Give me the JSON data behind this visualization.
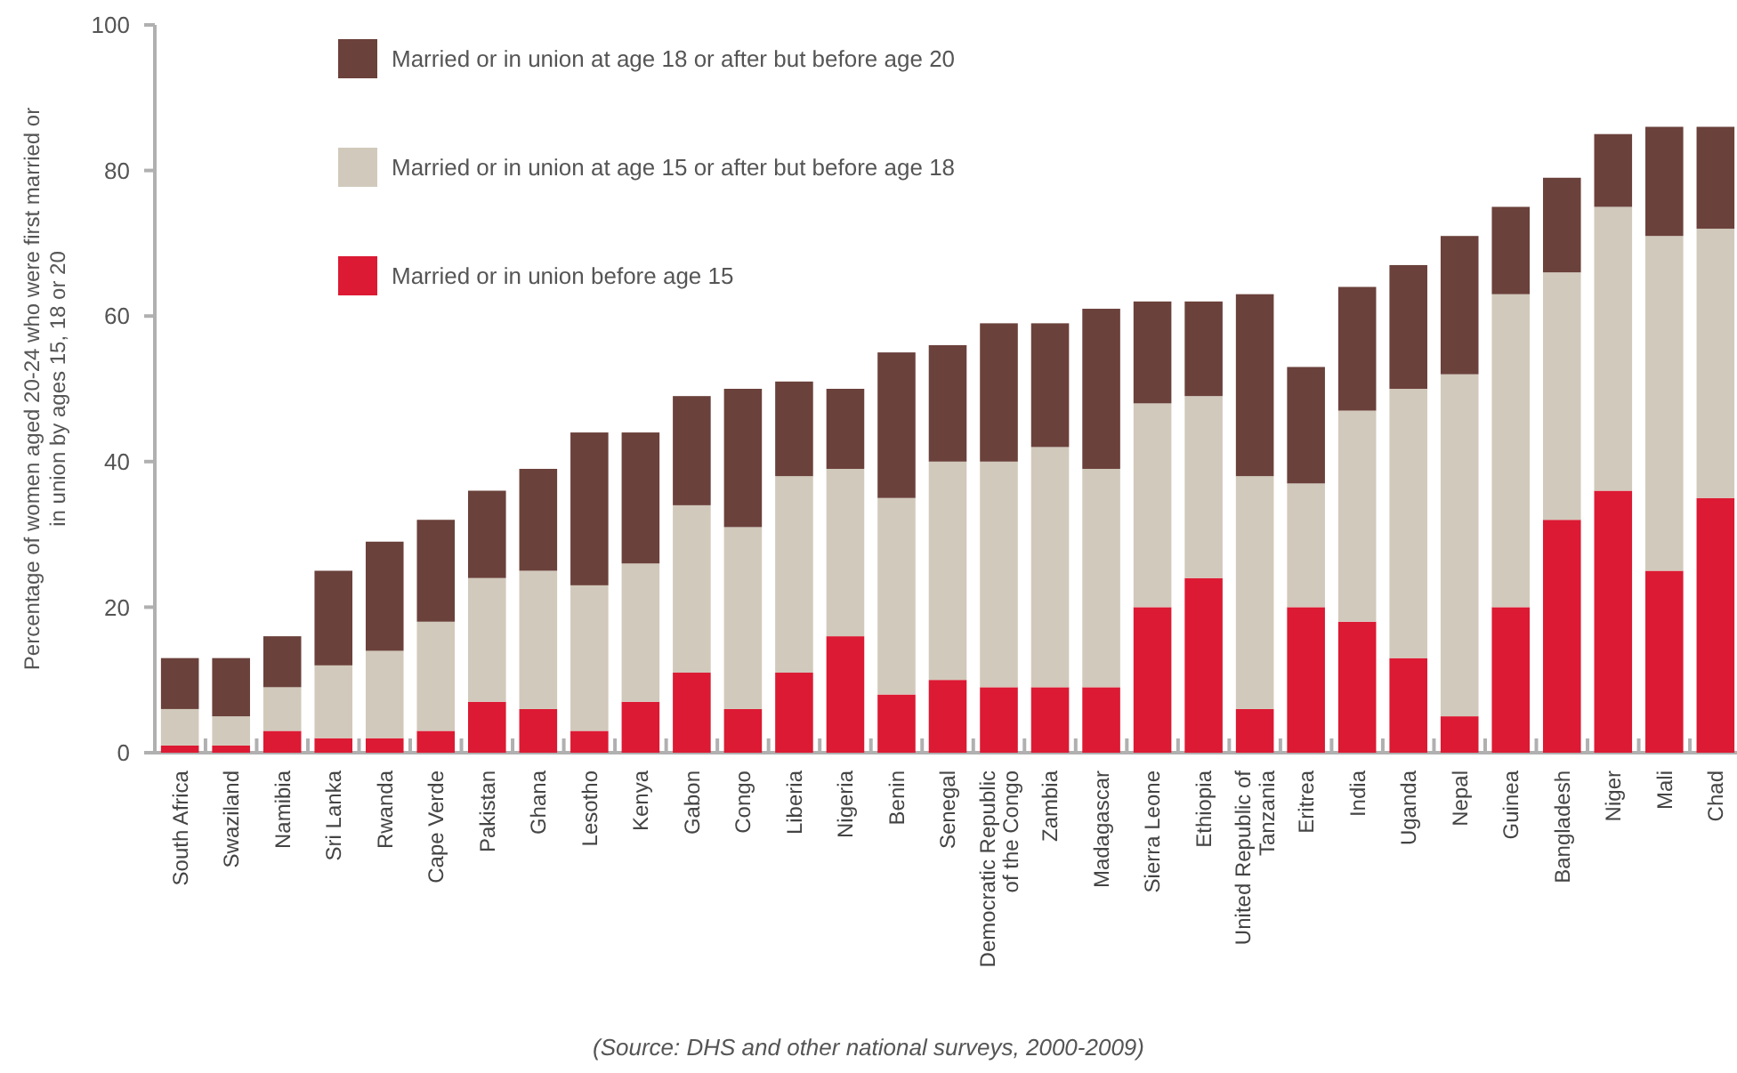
{
  "chart_data": {
    "type": "bar",
    "stacked": true,
    "ylabel": "Percentage of women aged 20-24 who were first married or in union by ages 15, 18 or 20",
    "categories": [
      "South Africa",
      "Swaziland",
      "Namibia",
      "Sri Lanka",
      "Rwanda",
      "Cape Verde",
      "Pakistan",
      "Ghana",
      "Lesotho",
      "Kenya",
      "Gabon",
      "Congo",
      "Liberia",
      "Nigeria",
      "Benin",
      "Senegal",
      "Democratic Republic of the Congo",
      "Zambia",
      "Madagascar",
      "Sierra Leone",
      "Ethiopia",
      "United Republic of Tanzania",
      "Eritrea",
      "India",
      "Uganda",
      "Nepal",
      "Guinea",
      "Bangladesh",
      "Niger",
      "Mali",
      "Chad"
    ],
    "series": [
      {
        "name": "Married or in union before age 15",
        "color": "#dc1a33",
        "values": [
          1,
          1,
          3,
          2,
          2,
          3,
          7,
          6,
          3,
          7,
          11,
          6,
          11,
          16,
          8,
          10,
          9,
          9,
          9,
          20,
          24,
          6,
          20,
          18,
          13,
          5,
          20,
          32,
          36,
          25,
          35
        ]
      },
      {
        "name": "Married or in union at age 15 or after but before age 18",
        "color": "#d1c9bb",
        "values": [
          5,
          4,
          6,
          10,
          12,
          15,
          17,
          19,
          20,
          19,
          23,
          25,
          27,
          23,
          27,
          30,
          31,
          33,
          30,
          28,
          25,
          32,
          17,
          29,
          37,
          47,
          43,
          34,
          39,
          46,
          37
        ]
      },
      {
        "name": "Married or in union at age 18 or after but before age 20",
        "color": "#6b413b",
        "values": [
          7,
          8,
          7,
          13,
          15,
          14,
          12,
          14,
          21,
          18,
          15,
          19,
          13,
          11,
          20,
          16,
          19,
          17,
          22,
          14,
          13,
          25,
          16,
          17,
          17,
          19,
          12,
          13,
          10,
          15,
          14
        ]
      }
    ],
    "ylim": [
      0,
      100
    ],
    "yticks": [
      0,
      20,
      40,
      60,
      80,
      100
    ],
    "grid": false,
    "legend": "top left",
    "annotations": [
      "(Source: DHS and other national surveys, 2000-2009)"
    ]
  }
}
